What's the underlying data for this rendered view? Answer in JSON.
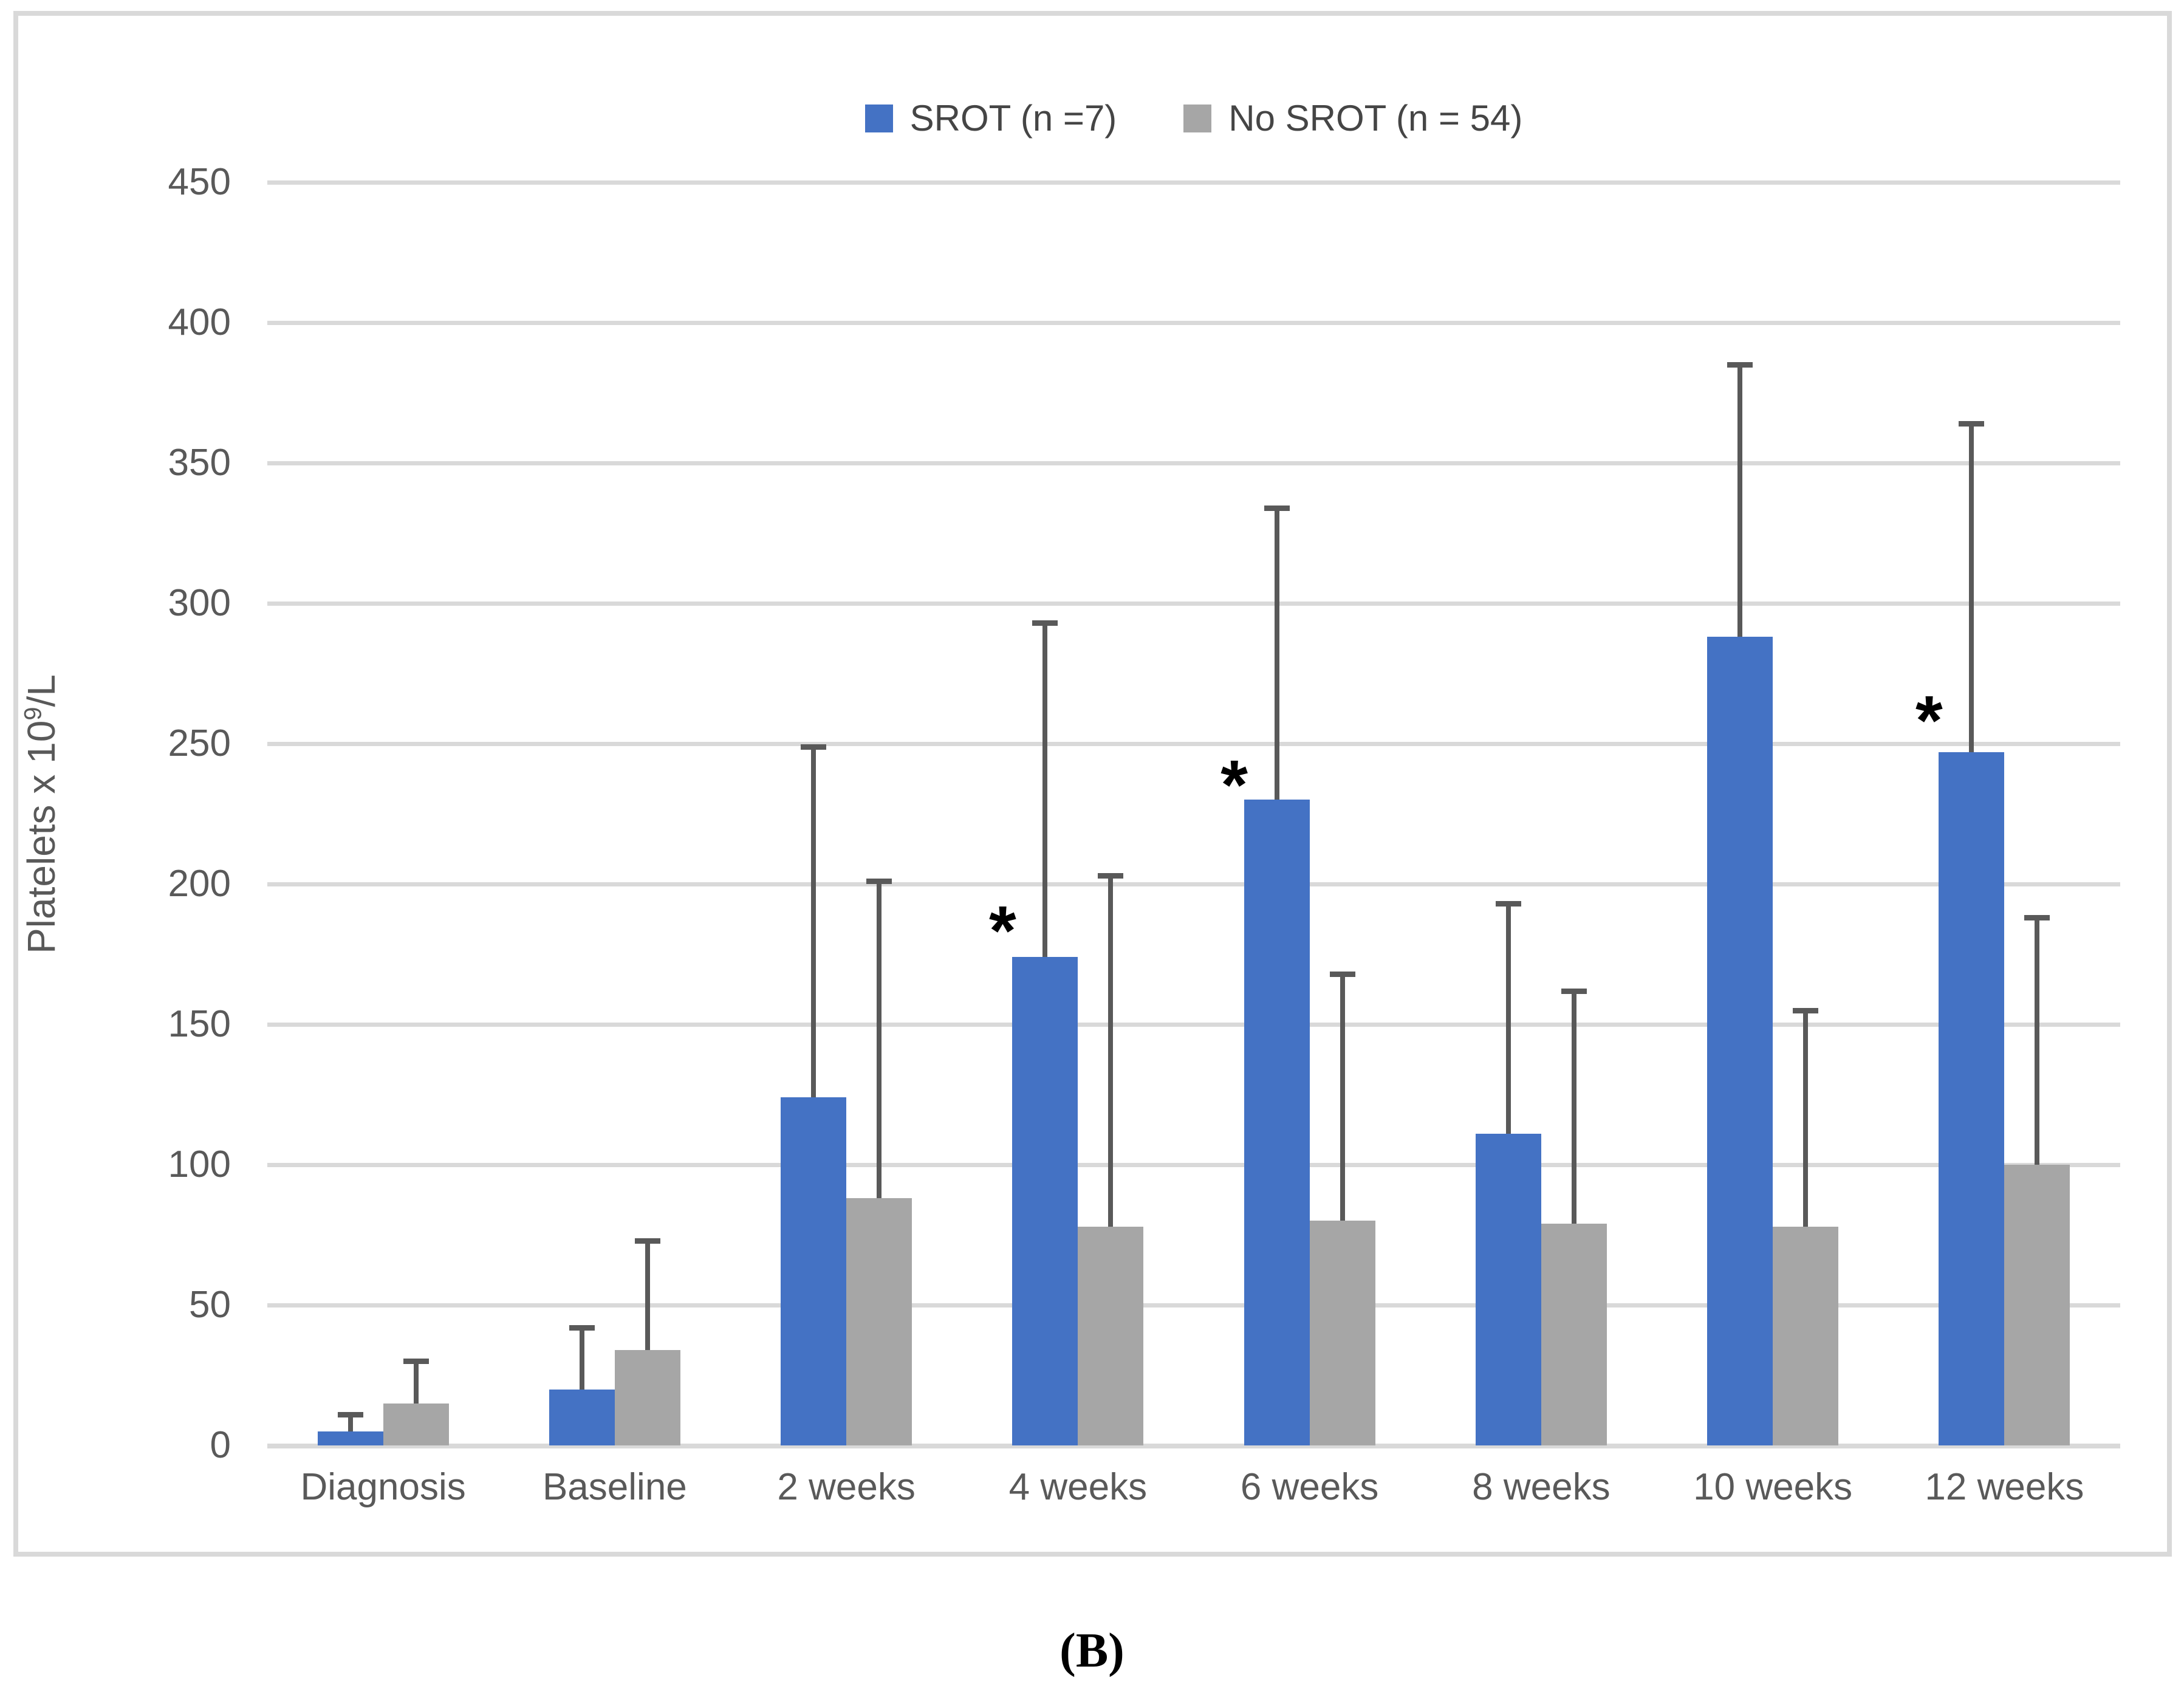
{
  "caption": "(B)",
  "sig_marker": "*",
  "colors": {
    "srot_blue": "#4472C4",
    "no_srot_gray": "#A6A6A6",
    "error_bar": "#595959",
    "gridline": "#D9D9D9",
    "axis_text": "#595959",
    "caption_text": "#000000"
  },
  "legend": {
    "items": [
      {
        "label": "SROT (n =7)",
        "color": "#4472C4"
      },
      {
        "label": "No SROT (n = 54)",
        "color": "#A6A6A6"
      }
    ]
  },
  "y_axis": {
    "title_prefix": "Platelets x 10",
    "title_sup": "9",
    "title_suffix": "/L",
    "ticks": [
      450,
      400,
      350,
      300,
      250,
      200,
      150,
      100,
      50,
      0
    ]
  },
  "chart_data": {
    "type": "bar",
    "title": "",
    "xlabel": "",
    "ylabel": "Platelets x 10^9/L",
    "ylim": [
      0,
      450
    ],
    "ytick_step": 50,
    "grid": true,
    "legend_position": "top-center",
    "categories": [
      "Diagnosis",
      "Baseline",
      "2 weeks",
      "4 weeks",
      "6 weeks",
      "8 weeks",
      "10 weeks",
      "12 weeks"
    ],
    "series": [
      {
        "name": "SROT (n =7)",
        "color": "#4472C4",
        "values": [
          5,
          20,
          124,
          174,
          230,
          111,
          288,
          247
        ],
        "error_top": [
          11,
          42,
          249,
          293,
          334,
          193,
          385,
          364
        ],
        "significance_y": [
          null,
          null,
          null,
          190,
          242,
          null,
          null,
          265
        ]
      },
      {
        "name": "No SROT (n = 54)",
        "color": "#A6A6A6",
        "values": [
          15,
          34,
          88,
          78,
          80,
          79,
          78,
          100
        ],
        "error_top": [
          30,
          73,
          201,
          203,
          168,
          162,
          155,
          188
        ],
        "significance_y": [
          null,
          null,
          null,
          null,
          null,
          null,
          null,
          null
        ]
      }
    ]
  }
}
